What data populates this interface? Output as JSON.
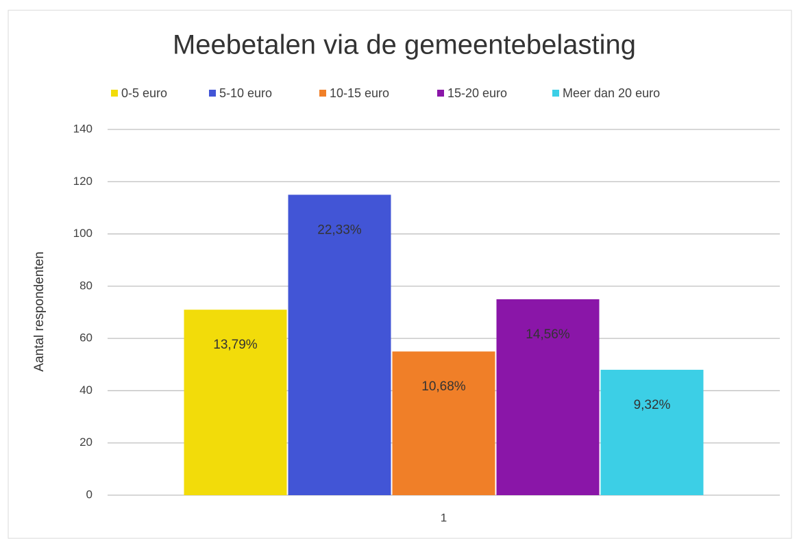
{
  "chart_data": {
    "type": "bar",
    "title": "Meebetalen via de gemeentebelasting",
    "y_label": "Aantal respondenten",
    "categories": [
      "1"
    ],
    "series": [
      {
        "name": "0-5 euro",
        "color": "#f2dc0a",
        "values": [
          71
        ],
        "percent_labels": [
          "13,79%"
        ]
      },
      {
        "name": "5-10 euro",
        "color": "#4255d6",
        "values": [
          115
        ],
        "percent_labels": [
          "22,33%"
        ]
      },
      {
        "name": "10-15 euro",
        "color": "#f07f28",
        "values": [
          55
        ],
        "percent_labels": [
          "10,68%"
        ]
      },
      {
        "name": "15-20 euro",
        "color": "#8a16a8",
        "values": [
          75
        ],
        "percent_labels": [
          "14,56%"
        ]
      },
      {
        "name": "Meer dan 20 euro",
        "color": "#3ccfe6",
        "values": [
          48
        ],
        "percent_labels": [
          "9,32%"
        ]
      }
    ],
    "ylim": [
      0,
      140
    ],
    "yticks": [
      0,
      20,
      40,
      60,
      80,
      100,
      120,
      140
    ],
    "grid": true,
    "legend": "top"
  }
}
